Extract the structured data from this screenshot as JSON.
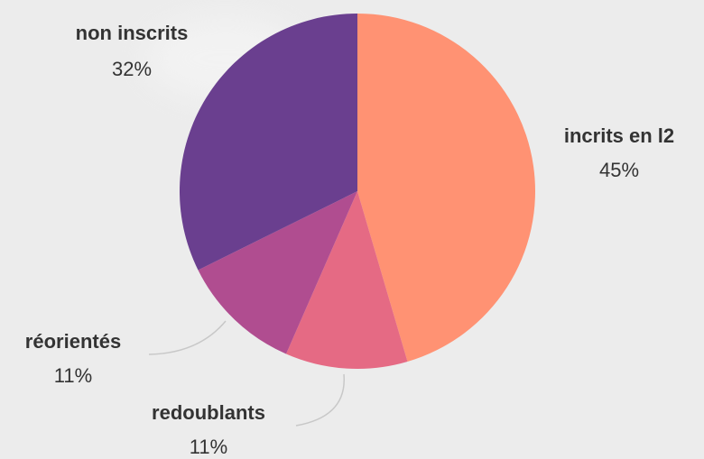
{
  "chart_data": {
    "type": "pie",
    "title": "",
    "slices": [
      {
        "label": "incrits en l2",
        "value": 45,
        "pct_label": "45%",
        "color": "#ff9273"
      },
      {
        "label": "redoublants",
        "value": 11,
        "pct_label": "11%",
        "color": "#e56a84"
      },
      {
        "label": "réorientés",
        "value": 11,
        "pct_label": "11%",
        "color": "#b04d90"
      },
      {
        "label": "non inscrits",
        "value": 32,
        "pct_label": "32%",
        "color": "#6a3f8f"
      }
    ],
    "start_angle_deg": 0,
    "direction": "clockwise",
    "legend": "none"
  }
}
